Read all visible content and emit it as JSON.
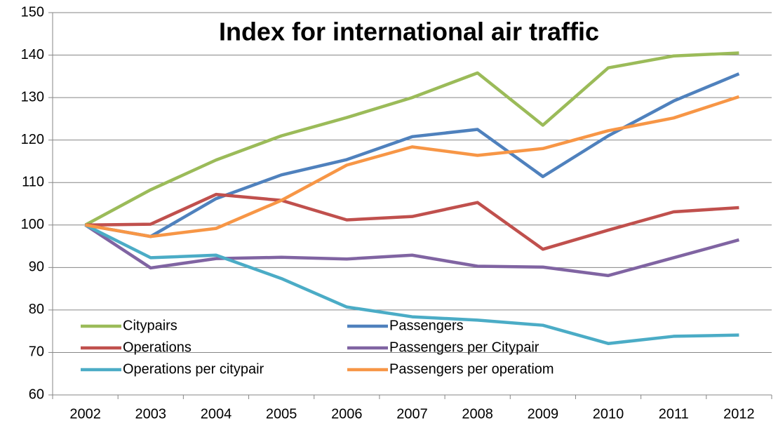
{
  "chart_data": {
    "type": "line",
    "title": "Index for international air traffic",
    "categories": [
      "2002",
      "2003",
      "2004",
      "2005",
      "2006",
      "2007",
      "2008",
      "2009",
      "2010",
      "2011",
      "2012"
    ],
    "series": [
      {
        "name": "Citypairs",
        "color": "#9bbb59",
        "values": [
          100,
          108.3,
          115.3,
          121,
          125.3,
          130,
          135.8,
          123.5,
          137,
          139.8,
          140.5
        ]
      },
      {
        "name": "Passengers",
        "color": "#4f81bd",
        "values": [
          100,
          97.3,
          106.2,
          111.8,
          115.4,
          120.8,
          122.5,
          111.4,
          121,
          129.2,
          135.6
        ]
      },
      {
        "name": "Operations",
        "color": "#c0504d",
        "values": [
          100,
          100.2,
          107.2,
          105.8,
          101.2,
          102,
          105.3,
          94.3,
          98.8,
          103.1,
          104.1
        ]
      },
      {
        "name": "Passengers per Citypair",
        "color": "#8064a2",
        "values": [
          100,
          89.9,
          92.1,
          92.4,
          92,
          92.9,
          90.3,
          90.1,
          88.1,
          92.3,
          96.5
        ]
      },
      {
        "name": "Operations per citypair",
        "color": "#4bacc6",
        "values": [
          100,
          92.3,
          92.9,
          87.4,
          80.7,
          78.4,
          77.6,
          76.4,
          72.1,
          73.8,
          74.1
        ]
      },
      {
        "name": "Passengers per operatiom",
        "color": "#f79646",
        "values": [
          100,
          97.3,
          99.2,
          105.8,
          114.1,
          118.4,
          116.4,
          118,
          122.2,
          125.2,
          130.2
        ]
      }
    ],
    "ylim": [
      60,
      150
    ],
    "yticks": [
      60,
      70,
      80,
      90,
      100,
      110,
      120,
      130,
      140,
      150
    ],
    "grid": true
  }
}
